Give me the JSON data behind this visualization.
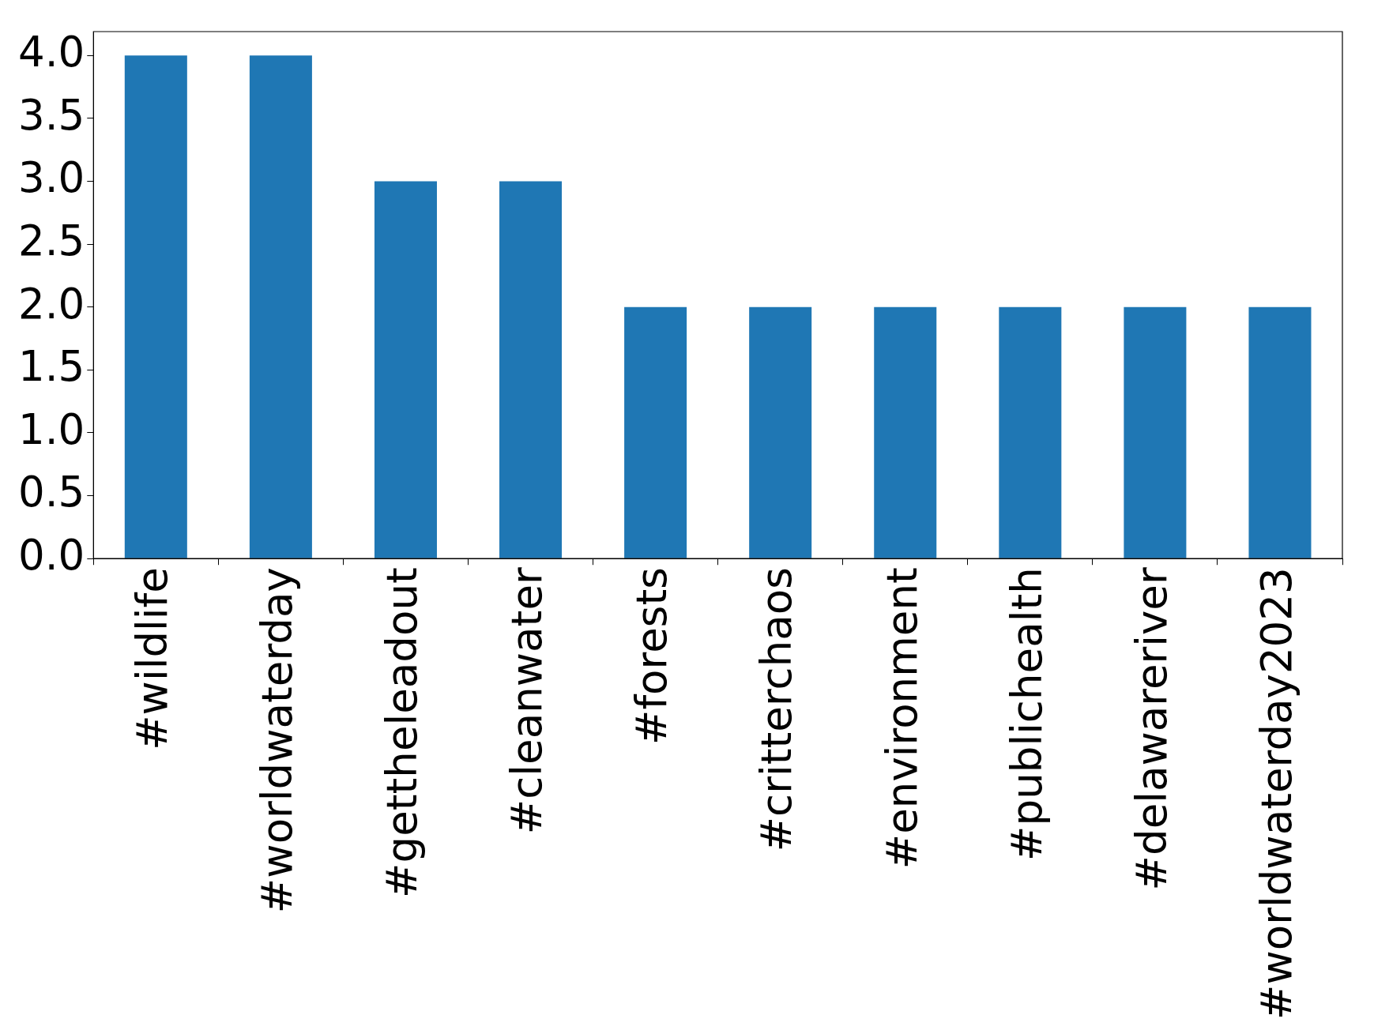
{
  "chart_data": {
    "type": "bar",
    "categories": [
      "#wildlife",
      "#worldwaterday",
      "#gettheleadout",
      "#cleanwater",
      "#forests",
      "#critterchaos",
      "#environment",
      "#publichealth",
      "#delawareriver",
      "#worldwaterday2023"
    ],
    "values": [
      4,
      4,
      3,
      3,
      2,
      2,
      2,
      2,
      2,
      2
    ],
    "color": "#1f77b4",
    "ylim": [
      0,
      4.19
    ],
    "yticks": [
      {
        "value": 0,
        "label": "0.0"
      },
      {
        "value": 0.5,
        "label": "0.5"
      },
      {
        "value": 1,
        "label": "1.0"
      },
      {
        "value": 1.5,
        "label": "1.5"
      },
      {
        "value": 2,
        "label": "2.0"
      },
      {
        "value": 2.5,
        "label": "2.5"
      },
      {
        "value": 3,
        "label": "3.0"
      },
      {
        "value": 3.5,
        "label": "3.5"
      },
      {
        "value": 4,
        "label": "4.0"
      }
    ],
    "grid": false,
    "legend": false
  }
}
